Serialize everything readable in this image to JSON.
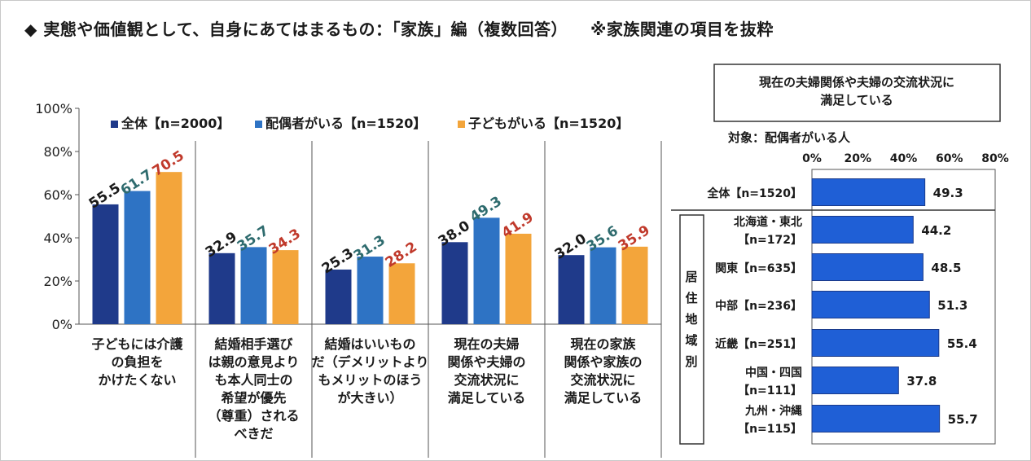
{
  "header": {
    "title": "◆ 実態や価値観として、自身にあてはまるもの：「家族」編（複数回答）",
    "note": "※家族関連の項目を抜粋"
  },
  "colors": {
    "s1": "#1f3a8a",
    "s2": "#2e73c4",
    "s3": "#f3a53b",
    "s2_label": "#2e6b6e",
    "s3_label": "#c0392b",
    "right_bar": "#1f5fd6"
  },
  "chart_data": [
    {
      "type": "bar",
      "categories": [
        [
          "子どもには介護",
          "の負担を",
          "かけたくない"
        ],
        [
          "結婚相手選び",
          "は親の意見より",
          "も本人同士の",
          "希望が優先",
          "（尊重）される",
          "べきだ"
        ],
        [
          "結婚はいいもの",
          "だ（デメリットより",
          "もメリットのほう",
          "が大きい）"
        ],
        [
          "現在の夫婦",
          "関係や夫婦の",
          "交流状況に",
          "満足している"
        ],
        [
          "現在の家族",
          "関係や家族の",
          "交流状況に",
          "満足している"
        ]
      ],
      "series": [
        {
          "name": "全体【n=2000】",
          "values": [
            55.5,
            32.9,
            25.3,
            38.0,
            32.0
          ]
        },
        {
          "name": "配偶者がいる【n=1520】",
          "values": [
            61.7,
            35.7,
            31.3,
            49.3,
            35.6
          ]
        },
        {
          "name": "子どもがいる【n=1520】",
          "values": [
            70.5,
            34.3,
            28.2,
            41.9,
            35.9
          ]
        }
      ],
      "yticks": [
        "0%",
        "20%",
        "40%",
        "60%",
        "80%",
        "100%"
      ],
      "ylim": [
        0,
        100
      ],
      "legend_position": "top",
      "grid": false
    },
    {
      "type": "bar",
      "orientation": "horizontal",
      "title": [
        "現在の夫婦関係や夫婦の交流状況に",
        "満足している"
      ],
      "subtitle": "対象：配偶者がいる人",
      "xticks": [
        "0%",
        "20%",
        "40%",
        "60%",
        "80%"
      ],
      "xlim": [
        0,
        80
      ],
      "group_label": [
        "居",
        "住",
        "地",
        "域",
        "別"
      ],
      "categories": [
        [
          "全体【n=1520】"
        ],
        [
          "北海道・東北",
          "【n=172】"
        ],
        [
          "関東【n=635】"
        ],
        [
          "中部【n=236】"
        ],
        [
          "近畿【n=251】"
        ],
        [
          "中国・四国",
          "【n=111】"
        ],
        [
          "九州・沖縄",
          "【n=115】"
        ]
      ],
      "values": [
        49.3,
        44.2,
        48.5,
        51.3,
        55.4,
        37.8,
        55.7
      ],
      "value_labels": [
        "49.3",
        "44.2",
        "48.5",
        "51.3",
        "55.4",
        "37.8",
        "55.7"
      ]
    }
  ]
}
